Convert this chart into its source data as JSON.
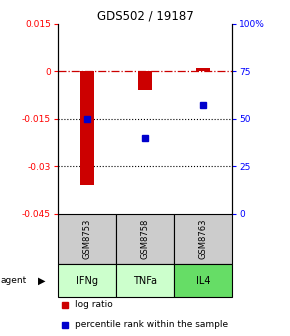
{
  "title": "GDS502 / 19187",
  "samples": [
    "GSM8753",
    "GSM8758",
    "GSM8763"
  ],
  "agents": [
    "IFNg",
    "TNFa",
    "IL4"
  ],
  "log_ratios": [
    -0.036,
    -0.006,
    0.001
  ],
  "percentile_ranks": [
    50,
    40,
    57
  ],
  "ylim_left": [
    -0.045,
    0.015
  ],
  "ylim_right": [
    0,
    100
  ],
  "yticks_left": [
    0.015,
    0,
    -0.015,
    -0.03,
    -0.045
  ],
  "yticks_right": [
    100,
    75,
    50,
    25,
    0
  ],
  "ytick_labels_left": [
    "0.015",
    "0",
    "-0.015",
    "-0.03",
    "-0.045"
  ],
  "ytick_labels_right": [
    "100%",
    "75",
    "50",
    "25",
    "0"
  ],
  "bar_color": "#cc0000",
  "marker_color": "#0000cc",
  "agent_colors": [
    "#ccffcc",
    "#ccffcc",
    "#66dd66"
  ],
  "sample_box_color": "#cccccc",
  "legend_log_ratio": "log ratio",
  "legend_percentile": "percentile rank within the sample",
  "bar_width": 0.25
}
